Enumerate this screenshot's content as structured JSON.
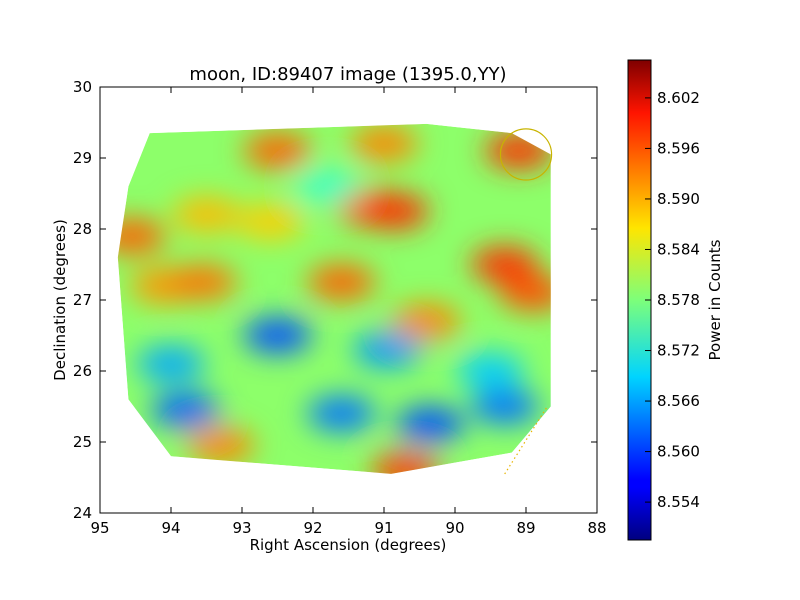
{
  "chart_data": {
    "type": "heatmap",
    "title": "moon, ID:89407 image (1395.0,YY)",
    "xlabel": "Right Ascension (degrees)",
    "ylabel": "Declination (degrees)",
    "xlim": [
      95,
      88
    ],
    "ylim": [
      24,
      30
    ],
    "x_ticks": [
      95,
      94,
      93,
      92,
      91,
      90,
      89,
      88
    ],
    "y_ticks": [
      24,
      25,
      26,
      27,
      28,
      29,
      30
    ],
    "colorbar": {
      "label": "Power in Counts",
      "colormap": "jet",
      "range": [
        8.5495,
        8.6065
      ],
      "ticks": [
        "8.554",
        "8.560",
        "8.566",
        "8.572",
        "8.578",
        "8.584",
        "8.590",
        "8.596",
        "8.602"
      ]
    },
    "image_footprint_corners_ra_dec": [
      [
        94.3,
        29.35
      ],
      [
        90.4,
        29.48
      ],
      [
        89.2,
        29.35
      ],
      [
        88.65,
        29.05
      ],
      [
        88.65,
        25.5
      ],
      [
        89.2,
        24.85
      ],
      [
        90.9,
        24.55
      ],
      [
        94.0,
        24.8
      ],
      [
        94.6,
        25.6
      ],
      [
        94.75,
        27.6
      ],
      [
        94.6,
        28.6
      ]
    ],
    "features": [
      {
        "ra": 94.55,
        "dec": 27.9,
        "value": 8.594
      },
      {
        "ra": 94.1,
        "dec": 27.2,
        "value": 8.591
      },
      {
        "ra": 93.55,
        "dec": 27.25,
        "value": 8.593
      },
      {
        "ra": 93.5,
        "dec": 28.2,
        "value": 8.589
      },
      {
        "ra": 92.6,
        "dec": 28.1,
        "value": 8.588
      },
      {
        "ra": 91.6,
        "dec": 27.25,
        "value": 8.594
      },
      {
        "ra": 91.2,
        "dec": 28.3,
        "value": 8.595
      },
      {
        "ra": 90.85,
        "dec": 28.25,
        "value": 8.597
      },
      {
        "ra": 90.4,
        "dec": 26.7,
        "value": 8.592
      },
      {
        "ra": 89.3,
        "dec": 27.5,
        "value": 8.597
      },
      {
        "ra": 88.9,
        "dec": 27.1,
        "value": 8.595
      },
      {
        "ra": 89.1,
        "dec": 29.1,
        "value": 8.597
      },
      {
        "ra": 92.5,
        "dec": 29.1,
        "value": 8.594
      },
      {
        "ra": 90.7,
        "dec": 24.6,
        "value": 8.596
      },
      {
        "ra": 93.3,
        "dec": 24.95,
        "value": 8.592
      },
      {
        "ra": 93.8,
        "dec": 25.45,
        "value": 8.562
      },
      {
        "ra": 92.5,
        "dec": 26.5,
        "value": 8.561
      },
      {
        "ra": 91.6,
        "dec": 25.4,
        "value": 8.563
      },
      {
        "ra": 90.35,
        "dec": 25.25,
        "value": 8.561
      },
      {
        "ra": 89.3,
        "dec": 25.5,
        "value": 8.563
      },
      {
        "ra": 90.95,
        "dec": 26.3,
        "value": 8.565
      },
      {
        "ra": 89.5,
        "dec": 26.0,
        "value": 8.568
      },
      {
        "ra": 94.0,
        "dec": 26.1,
        "value": 8.566
      },
      {
        "ra": 91.0,
        "dec": 29.2,
        "value": 8.592
      },
      {
        "ra": 91.8,
        "dec": 28.6,
        "value": 8.574
      }
    ],
    "annotations": [
      {
        "type": "circle",
        "ra": 89.0,
        "dec": 29.05,
        "radius_deg": 0.36,
        "color": "#c8b400"
      },
      {
        "type": "dotted-line",
        "from": [
          89.3,
          24.55
        ],
        "to": [
          88.7,
          25.5
        ],
        "color": "#e8b400"
      }
    ],
    "grid": false
  }
}
